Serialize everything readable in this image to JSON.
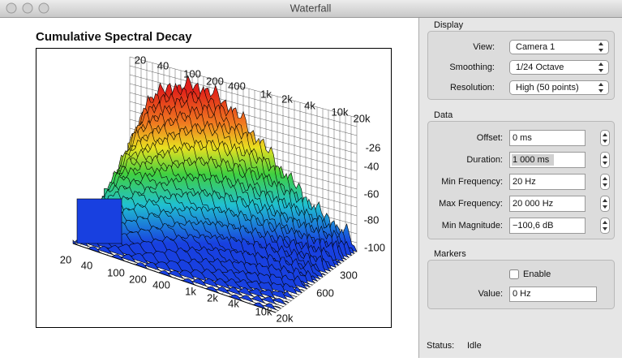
{
  "window": {
    "title": "Waterfall"
  },
  "plot": {
    "title": "Cumulative Spectral Decay",
    "back_frequency_labels": [
      "20",
      "40",
      "100",
      "200",
      "400",
      "1k",
      "2k",
      "4k",
      "10k",
      "20k"
    ],
    "magnitude_labels": [
      "-26",
      "-40",
      "-60",
      "-80",
      "-100"
    ],
    "front_frequency_labels": [
      "20",
      "40",
      "100",
      "200",
      "400",
      "1k",
      "2k",
      "4k",
      "10k",
      "20k"
    ],
    "time_labels": [
      "300",
      "600"
    ]
  },
  "display": {
    "title": "Display",
    "fields": [
      {
        "label": "View:",
        "value": "Camera 1"
      },
      {
        "label": "Smoothing:",
        "value": "1/24 Octave"
      },
      {
        "label": "Resolution:",
        "value": "High (50 points)"
      }
    ]
  },
  "data": {
    "title": "Data",
    "fields": [
      {
        "label": "Offset:",
        "value": "0 ms"
      },
      {
        "label": "Duration:",
        "value": "1 000 ms"
      },
      {
        "label": "Min Frequency:",
        "value": "20 Hz"
      },
      {
        "label": "Max Frequency:",
        "value": "20 000 Hz"
      },
      {
        "label": "Min Magnitude:",
        "value": "−100,6 dB"
      }
    ]
  },
  "markers": {
    "title": "Markers",
    "checkbox": "Enable",
    "label": "Value:",
    "value": "0 Hz"
  },
  "status": {
    "label": "Status:",
    "value": "Idle"
  }
}
